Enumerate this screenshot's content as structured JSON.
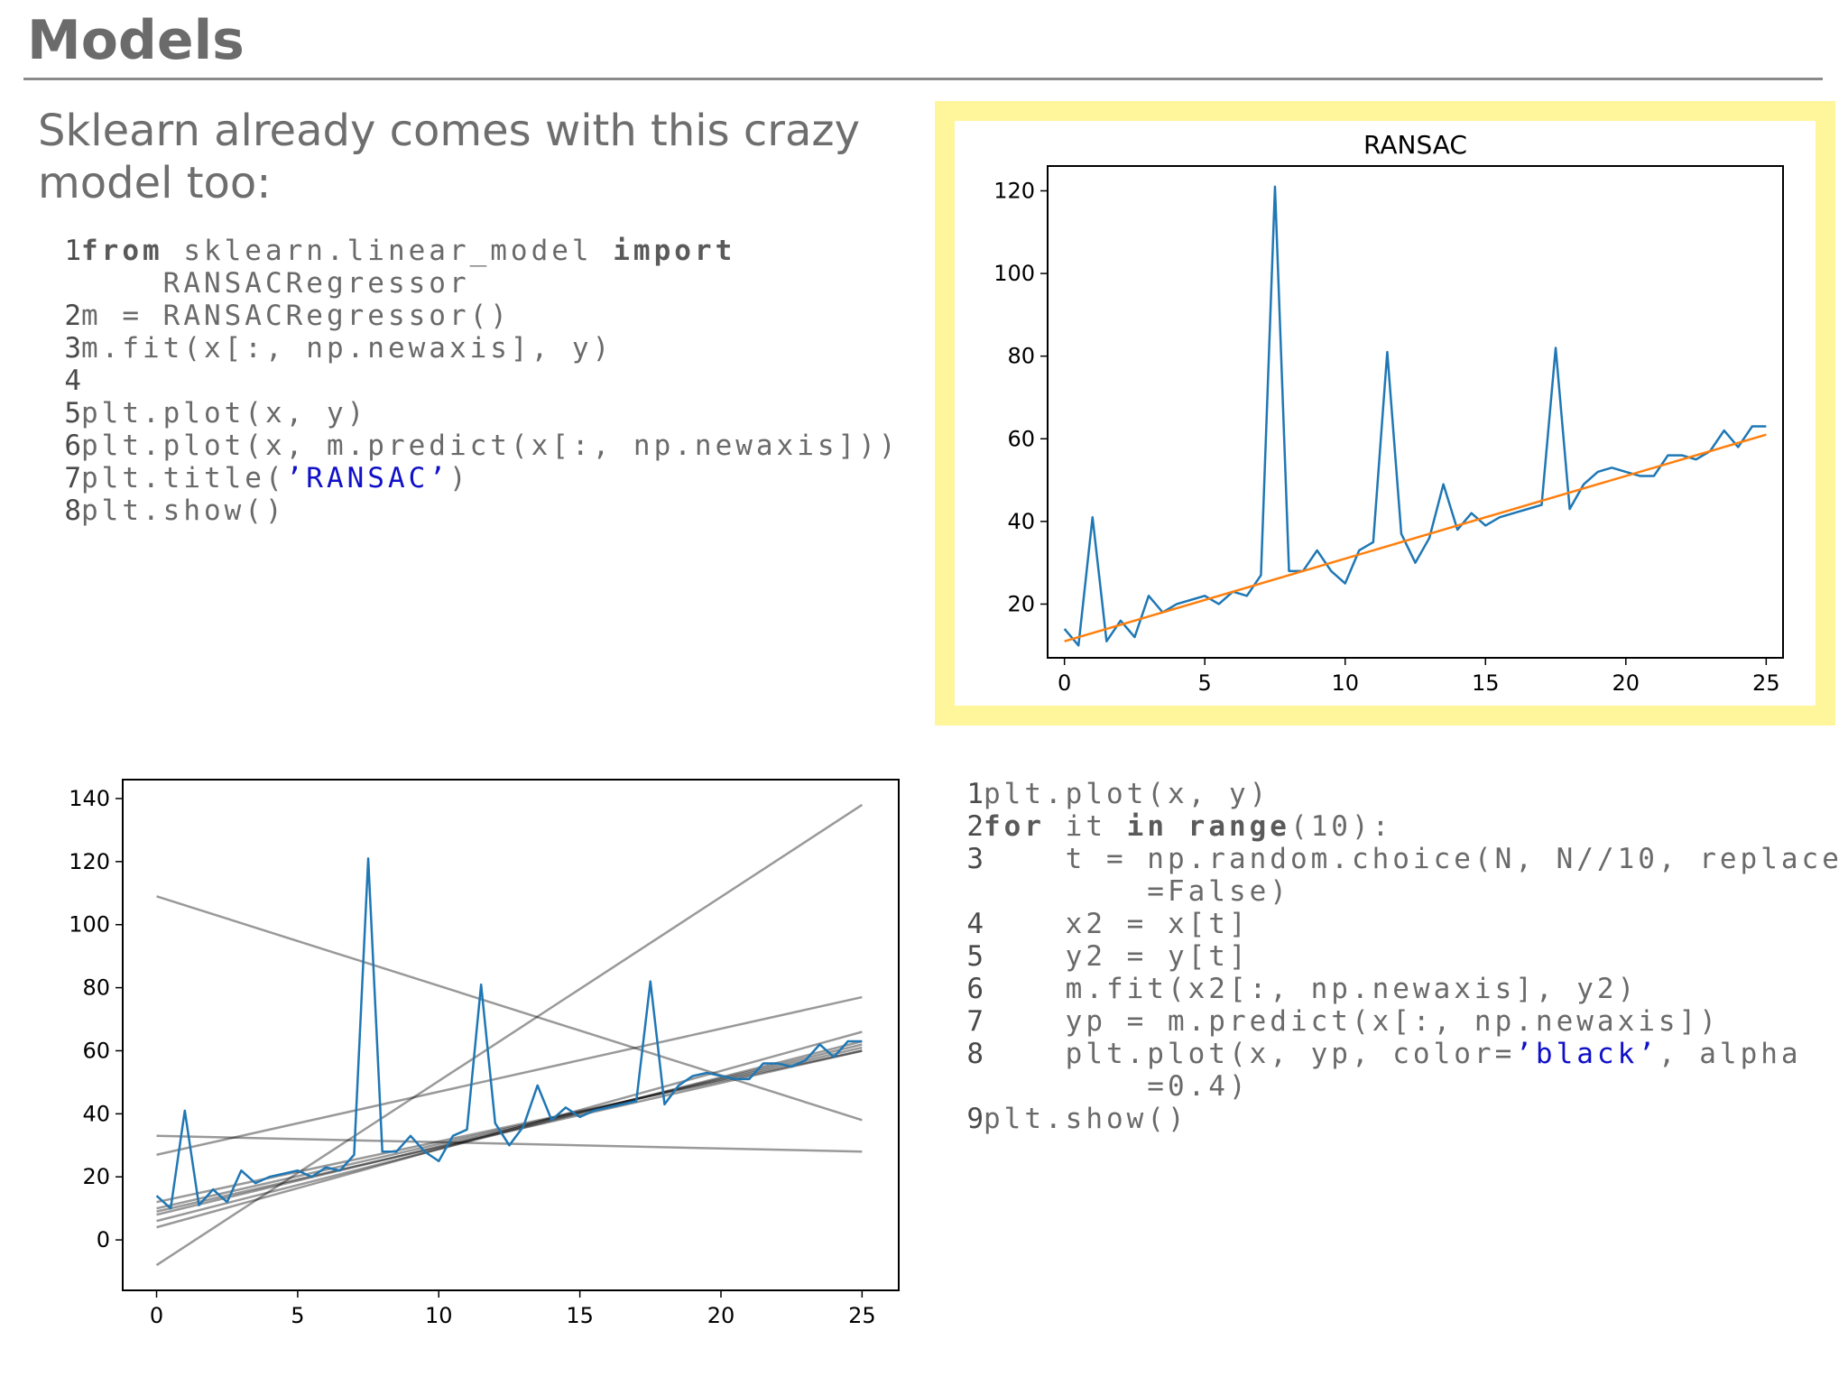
{
  "slide": {
    "title": "Models",
    "intro": "Sklearn already comes with this crazy model too:"
  },
  "code_blocks": [
    {
      "lines": [
        {
          "num": "1",
          "parts": [
            {
              "t": "kw",
              "s": "from"
            },
            {
              "t": "tx",
              "s": " sklearn.linear_model "
            },
            {
              "t": "kw",
              "s": "import"
            }
          ]
        },
        {
          "num": "",
          "parts": [
            {
              "t": "tx",
              "s": "    RANSACRegressor"
            }
          ]
        },
        {
          "num": "2",
          "parts": [
            {
              "t": "tx",
              "s": "m = RANSACRegressor()"
            }
          ]
        },
        {
          "num": "3",
          "parts": [
            {
              "t": "tx",
              "s": "m.fit(x[:, np.newaxis], y)"
            }
          ]
        },
        {
          "num": "4",
          "parts": []
        },
        {
          "num": "5",
          "parts": [
            {
              "t": "tx",
              "s": "plt.plot(x, y)"
            }
          ]
        },
        {
          "num": "6",
          "parts": [
            {
              "t": "tx",
              "s": "plt.plot(x, m.predict(x[:, np.newaxis]))"
            }
          ]
        },
        {
          "num": "7",
          "parts": [
            {
              "t": "tx",
              "s": "plt.title("
            },
            {
              "t": "str",
              "s": "’RANSAC’"
            },
            {
              "t": "tx",
              "s": ")"
            }
          ]
        },
        {
          "num": "8",
          "parts": [
            {
              "t": "tx",
              "s": "plt.show()"
            }
          ]
        }
      ]
    },
    {
      "lines": [
        {
          "num": "1",
          "parts": [
            {
              "t": "tx",
              "s": "plt.plot(x, y)"
            }
          ]
        },
        {
          "num": "2",
          "parts": [
            {
              "t": "kw",
              "s": "for"
            },
            {
              "t": "tx",
              "s": " it "
            },
            {
              "t": "kw",
              "s": "in"
            },
            {
              "t": "tx",
              "s": " "
            },
            {
              "t": "kw",
              "s": "range"
            },
            {
              "t": "tx",
              "s": "(10):"
            }
          ]
        },
        {
          "num": "3",
          "parts": [
            {
              "t": "tx",
              "s": "    t = np.random.choice(N, N//10, replace"
            }
          ]
        },
        {
          "num": "",
          "parts": [
            {
              "t": "tx",
              "s": "        =False)"
            }
          ]
        },
        {
          "num": "4",
          "parts": [
            {
              "t": "tx",
              "s": "    x2 = x[t]"
            }
          ]
        },
        {
          "num": "5",
          "parts": [
            {
              "t": "tx",
              "s": "    y2 = y[t]"
            }
          ]
        },
        {
          "num": "6",
          "parts": [
            {
              "t": "tx",
              "s": "    m.fit(x2[:, np.newaxis], y2)"
            }
          ]
        },
        {
          "num": "7",
          "parts": [
            {
              "t": "tx",
              "s": "    yp = m.predict(x[:, np.newaxis])"
            }
          ]
        },
        {
          "num": "8",
          "parts": [
            {
              "t": "tx",
              "s": "    plt.plot(x, yp, color="
            },
            {
              "t": "str",
              "s": "’black’"
            },
            {
              "t": "tx",
              "s": ", alpha"
            }
          ]
        },
        {
          "num": "",
          "parts": [
            {
              "t": "tx",
              "s": "        =0.4)"
            }
          ]
        },
        {
          "num": "9",
          "parts": [
            {
              "t": "tx",
              "s": "plt.show()"
            }
          ]
        }
      ]
    }
  ],
  "colors": {
    "highlight_border": "#fff59a",
    "series_blue": "#1f77b4",
    "series_orange": "#ff7f0e",
    "fit_lines": "#000000"
  },
  "chart_data": [
    {
      "type": "line",
      "title": "RANSAC",
      "xlim": [
        -0.6,
        25.6
      ],
      "ylim": [
        7,
        126
      ],
      "xticks": [
        0,
        5,
        10,
        15,
        20,
        25
      ],
      "yticks": [
        20,
        40,
        60,
        80,
        100,
        120
      ],
      "series": [
        {
          "color": "#1f77b4",
          "x": [
            0,
            0.5,
            1,
            1.5,
            2,
            2.5,
            3,
            3.5,
            4,
            4.5,
            5,
            5.5,
            6,
            6.5,
            7,
            7.5,
            8,
            8.5,
            9,
            9.5,
            10,
            10.5,
            11,
            11.5,
            12,
            12.5,
            13,
            13.5,
            14,
            14.5,
            15,
            15.5,
            16,
            16.5,
            17,
            17.5,
            18,
            18.5,
            19,
            19.5,
            20,
            20.5,
            21,
            21.5,
            22,
            22.5,
            23,
            23.5,
            24,
            24.5,
            25
          ],
          "y": [
            14,
            10,
            41,
            11,
            16,
            12,
            22,
            18,
            20,
            21,
            22,
            20,
            23,
            22,
            27,
            121,
            28,
            28,
            33,
            28,
            25,
            33,
            35,
            81,
            37,
            30,
            36,
            49,
            38,
            42,
            39,
            41,
            42,
            43,
            44,
            82,
            43,
            49,
            52,
            53,
            52,
            51,
            51,
            56,
            56,
            55,
            57,
            62,
            58,
            63,
            63
          ]
        },
        {
          "color": "#ff7f0e",
          "x": [
            0,
            25
          ],
          "y": [
            11,
            61
          ]
        }
      ]
    },
    {
      "type": "line",
      "title": "",
      "xlim": [
        -1.2,
        26.3
      ],
      "ylim": [
        -16,
        146
      ],
      "xticks": [
        0,
        5,
        10,
        15,
        20,
        25
      ],
      "yticks": [
        0,
        20,
        40,
        60,
        80,
        100,
        120,
        140
      ],
      "series": [
        {
          "color": "#1f77b4",
          "x": [
            0,
            0.5,
            1,
            1.5,
            2,
            2.5,
            3,
            3.5,
            4,
            4.5,
            5,
            5.5,
            6,
            6.5,
            7,
            7.5,
            8,
            8.5,
            9,
            9.5,
            10,
            10.5,
            11,
            11.5,
            12,
            12.5,
            13,
            13.5,
            14,
            14.5,
            15,
            15.5,
            16,
            16.5,
            17,
            17.5,
            18,
            18.5,
            19,
            19.5,
            20,
            20.5,
            21,
            21.5,
            22,
            22.5,
            23,
            23.5,
            24,
            24.5,
            25
          ],
          "y": [
            14,
            10,
            41,
            11,
            16,
            12,
            22,
            18,
            20,
            21,
            22,
            20,
            23,
            22,
            27,
            121,
            28,
            28,
            33,
            28,
            25,
            33,
            35,
            81,
            37,
            30,
            36,
            49,
            38,
            42,
            39,
            41,
            42,
            43,
            44,
            82,
            43,
            49,
            52,
            53,
            52,
            51,
            51,
            56,
            56,
            55,
            57,
            62,
            58,
            63,
            63
          ]
        }
      ],
      "fit_lines": [
        {
          "x": [
            0,
            25
          ],
          "y": [
            -8,
            138
          ]
        },
        {
          "x": [
            0,
            25
          ],
          "y": [
            109,
            38
          ]
        },
        {
          "x": [
            0,
            25
          ],
          "y": [
            27,
            77
          ]
        },
        {
          "x": [
            0,
            25
          ],
          "y": [
            33,
            28
          ]
        },
        {
          "x": [
            0,
            25
          ],
          "y": [
            4,
            66
          ]
        },
        {
          "x": [
            0,
            25
          ],
          "y": [
            6,
            63
          ]
        },
        {
          "x": [
            0,
            25
          ],
          "y": [
            8,
            62
          ]
        },
        {
          "x": [
            0,
            25
          ],
          "y": [
            10,
            61
          ]
        },
        {
          "x": [
            0,
            25
          ],
          "y": [
            12,
            60
          ]
        },
        {
          "x": [
            0,
            25
          ],
          "y": [
            9,
            60
          ]
        }
      ]
    }
  ]
}
